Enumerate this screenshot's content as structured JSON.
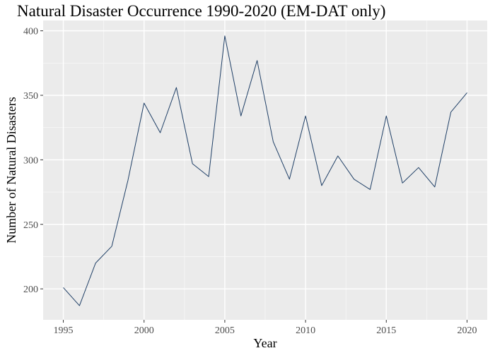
{
  "chart_data": {
    "type": "line",
    "title": "Natural Disaster Occurrence 1990-2020 (EM-DAT only)",
    "xlabel": "Year",
    "ylabel": "Number of Natural Disasters",
    "xlim": [
      1993.75,
      2021.25
    ],
    "ylim": [
      176,
      408
    ],
    "x_ticks": [
      1995,
      2000,
      2005,
      2010,
      2015,
      2020
    ],
    "y_ticks": [
      200,
      250,
      300,
      350,
      400
    ],
    "grid": true,
    "background": "#ebebeb",
    "line_color": "#1f3f66",
    "series": [
      {
        "x": [
          1995,
          1996,
          1997,
          1998,
          1999,
          2000,
          2001,
          2002,
          2003,
          2004,
          2005,
          2006,
          2007,
          2008,
          2009,
          2010,
          2011,
          2012,
          2013,
          2014,
          2015,
          2016,
          2017,
          2018,
          2019,
          2020
        ],
        "values": [
          201,
          187,
          220,
          233,
          284,
          344,
          321,
          356,
          297,
          287,
          396,
          334,
          377,
          314,
          285,
          334,
          280,
          303,
          285,
          277,
          334,
          282,
          294,
          279,
          337,
          352
        ]
      }
    ]
  }
}
